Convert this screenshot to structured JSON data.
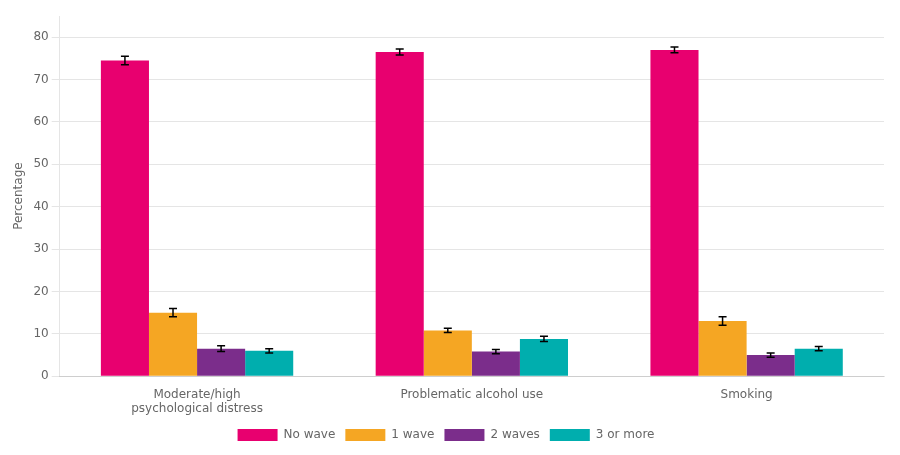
{
  "chart_data": {
    "type": "bar",
    "ylabel": "Percentage",
    "categories": [
      "Moderate/high\npsychological distress",
      "Problematic alcohol use",
      "Smoking"
    ],
    "series": [
      {
        "name": "No wave",
        "color": "#E8006F",
        "values": [
          74.5,
          76.5,
          77.0
        ],
        "errors": [
          1.0,
          0.7,
          0.7
        ]
      },
      {
        "name": "1 wave",
        "color": "#F5A623",
        "values": [
          15.0,
          10.8,
          13.0
        ],
        "errors": [
          1.0,
          0.5,
          1.0
        ]
      },
      {
        "name": "2 waves",
        "color": "#7B2D8B",
        "values": [
          6.5,
          5.8,
          5.0
        ],
        "errors": [
          0.7,
          0.5,
          0.5
        ]
      },
      {
        "name": "3 or more",
        "color": "#00AEAE",
        "values": [
          6.0,
          8.8,
          6.5
        ],
        "errors": [
          0.5,
          0.6,
          0.5
        ]
      }
    ],
    "ylim": [
      0,
      85
    ],
    "yticks": [
      0,
      10,
      20,
      30,
      40,
      50,
      60,
      70,
      80
    ],
    "grid": true,
    "legend": "bottom"
  }
}
